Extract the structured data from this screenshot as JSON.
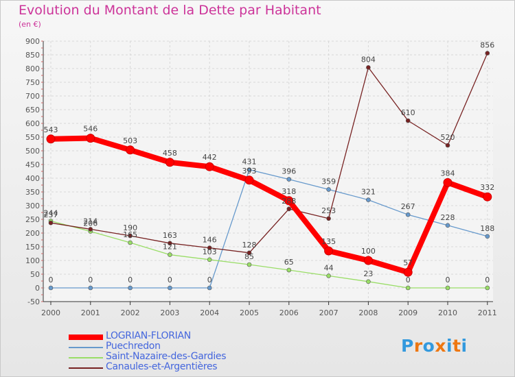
{
  "title": "Evolution du Montant de la Dette par Habitant",
  "subtitle": "(en €)",
  "chart_data": {
    "type": "line",
    "title": "Evolution du Montant de la Dette par Habitant",
    "ylabel": "(en €)",
    "x": [
      "2000",
      "2001",
      "2002",
      "2003",
      "2004",
      "2005",
      "2006",
      "2007",
      "2008",
      "2009",
      "2010",
      "2011"
    ],
    "ylim": [
      -50,
      900
    ],
    "yticks": [
      "-50",
      "0",
      "50",
      "100",
      "150",
      "200",
      "250",
      "300",
      "350",
      "400",
      "450",
      "500",
      "550",
      "600",
      "650",
      "700",
      "750",
      "800",
      "850",
      "900"
    ],
    "grid": true,
    "legend_position": "bottom-left",
    "series": [
      {
        "name": "LOGRIAN-FLORIAN",
        "color": "#ff0000",
        "width": "thick",
        "values": [
          543,
          546,
          503,
          458,
          442,
          393,
          318,
          135,
          100,
          57,
          384,
          332
        ]
      },
      {
        "name": "Puechredon",
        "color": "#6699cc",
        "width": "thin",
        "values": [
          0,
          0,
          0,
          0,
          0,
          431,
          396,
          359,
          321,
          267,
          228,
          188
        ]
      },
      {
        "name": "Saint-Nazaire-des-Gardies",
        "color": "#99dd66",
        "width": "thin",
        "values": [
          244,
          206,
          165,
          121,
          103,
          85,
          65,
          44,
          23,
          0,
          0,
          0
        ]
      },
      {
        "name": "Canaules-et-Argentières",
        "color": "#772222",
        "width": "thin",
        "values": [
          237,
          214,
          190,
          163,
          146,
          128,
          288,
          253,
          804,
          610,
          520,
          856
        ]
      }
    ]
  },
  "logo": {
    "letters": [
      "P",
      "r",
      "o",
      "x",
      "i",
      "t",
      "i"
    ],
    "colors": [
      "#3399dd",
      "#ee7711",
      "#3399dd",
      "#ee7711",
      "#3399dd",
      "#ee7711",
      "#3399dd"
    ]
  }
}
